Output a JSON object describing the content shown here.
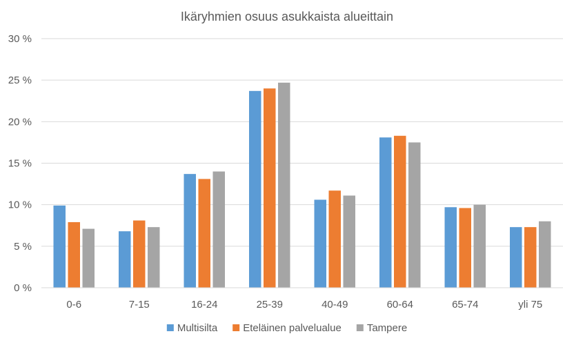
{
  "chart_data": {
    "type": "bar",
    "title": "Ikäryhmien osuus asukkaista alueittain",
    "xlabel": "",
    "ylabel": "",
    "categories": [
      "0-6",
      "7-15",
      "16-24",
      "25-39",
      "40-49",
      "60-64",
      "65-74",
      "yli 75"
    ],
    "ylim": [
      0,
      30
    ],
    "yticks": [
      "0 %",
      "5 %",
      "10 %",
      "15 %",
      "20 %",
      "25 %",
      "30 %"
    ],
    "grid": true,
    "legend_position": "bottom",
    "series": [
      {
        "name": "Multisilta",
        "color": "#5b9bd5",
        "values": [
          9.9,
          6.8,
          13.7,
          23.7,
          10.6,
          18.1,
          9.7,
          7.3
        ]
      },
      {
        "name": "Eteläinen palvelualue",
        "color": "#ed7d31",
        "values": [
          7.9,
          8.1,
          13.1,
          24.0,
          11.7,
          18.3,
          9.6,
          7.3
        ]
      },
      {
        "name": "Tampere",
        "color": "#a5a5a5",
        "values": [
          7.1,
          7.3,
          14.0,
          24.7,
          11.1,
          17.5,
          10.0,
          8.0
        ]
      }
    ]
  }
}
